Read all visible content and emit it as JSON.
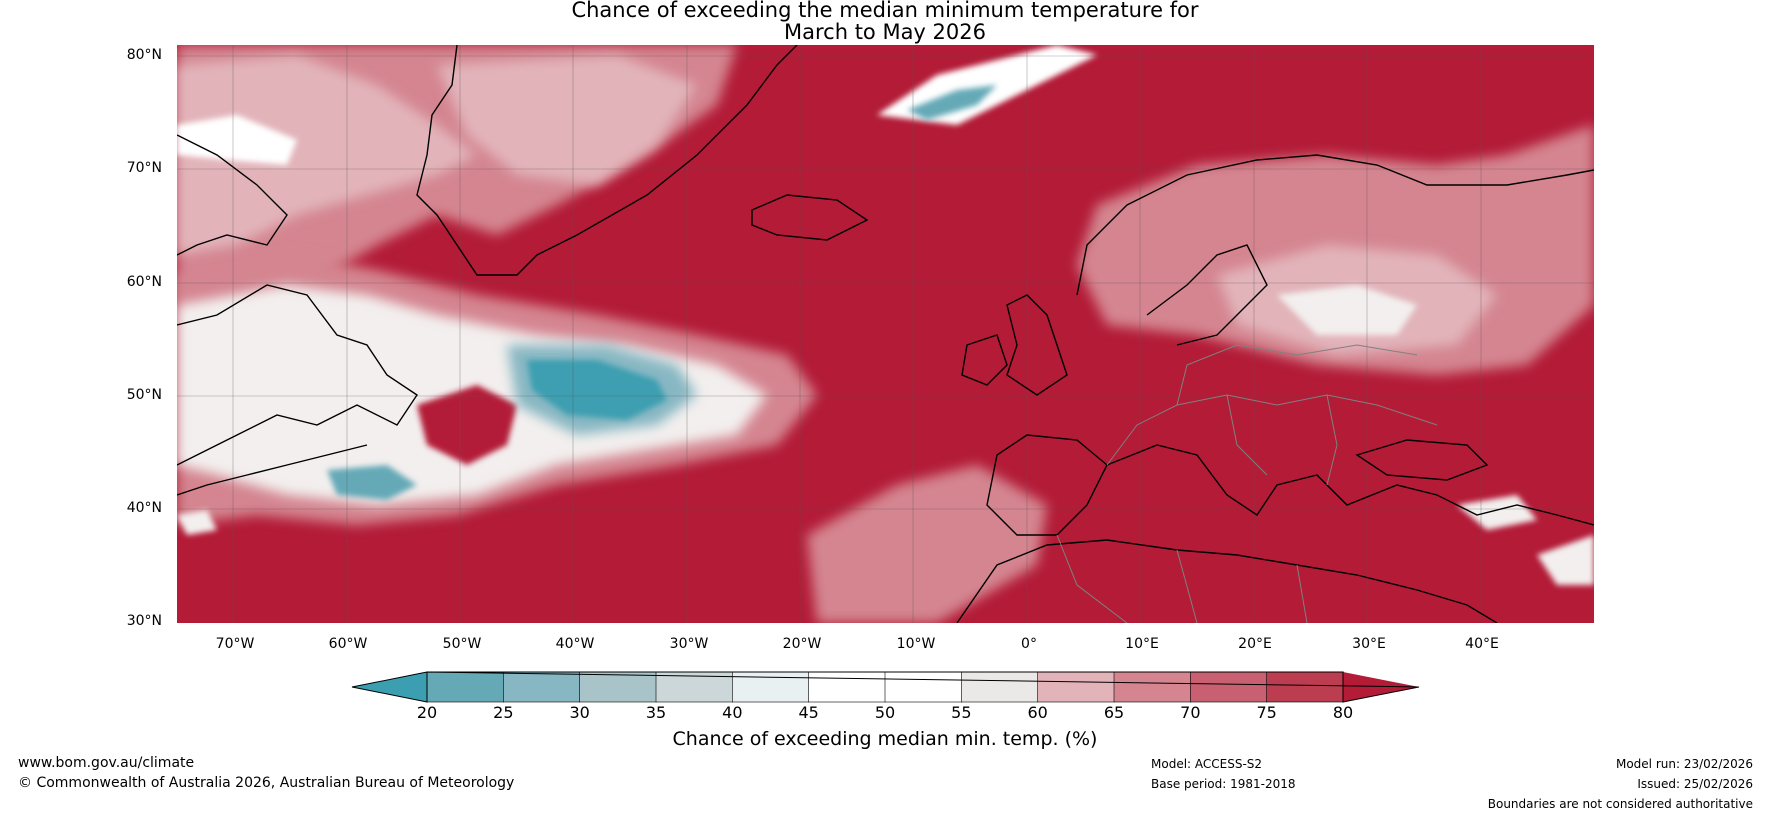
{
  "title": {
    "line1": "Chance of exceeding the median minimum temperature for",
    "line2": "March to May 2026"
  },
  "map": {
    "lat_labels": [
      "80°N",
      "70°N",
      "60°N",
      "50°N",
      "40°N",
      "30°N"
    ],
    "lon_labels": [
      "70°W",
      "60°W",
      "50°W",
      "40°W",
      "30°W",
      "20°W",
      "10°W",
      "0°",
      "10°E",
      "20°E",
      "30°E",
      "40°E"
    ],
    "lat_range": [
      30,
      81
    ],
    "lon_range": [
      -75,
      50
    ],
    "background_color": "#b31b37"
  },
  "colorbar": {
    "ticks": [
      "20",
      "25",
      "30",
      "35",
      "40",
      "45",
      "50",
      "55",
      "60",
      "65",
      "70",
      "75",
      "80"
    ],
    "colors": [
      "#3c9fb1",
      "#65a9b7",
      "#87b7c3",
      "#a9c4c9",
      "#ccd7d9",
      "#e9f0f2",
      "#ffffff",
      "#ffffff",
      "#ebe9e8",
      "#e2b4ba",
      "#d48590",
      "#c96071",
      "#bb3d4f",
      "#b31b37"
    ],
    "label": "Chance of exceeding median min. temp. (%)"
  },
  "footer": {
    "website": "www.bom.gov.au/climate",
    "copyright": "© Commonwealth of Australia 2026, Australian Bureau of Meteorology",
    "model": "Model: ACCESS-S2",
    "base_period": "Base period: 1981-2018",
    "model_run": "Model run: 23/02/2026",
    "issued": "Issued: 25/02/2026",
    "disclaimer": "Boundaries are not considered authoritative"
  }
}
